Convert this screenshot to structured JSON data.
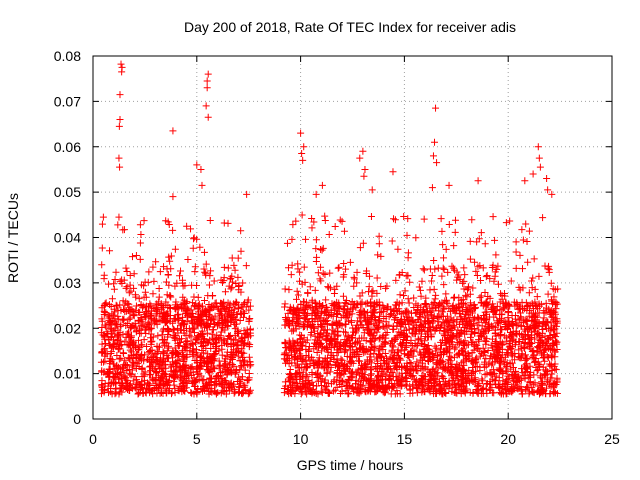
{
  "chart_data": {
    "type": "scatter",
    "title": "Day 200 of 2018, Rate Of TEC Index for receiver adis",
    "xlabel": "GPS time / hours",
    "ylabel": "ROTI / TECUs",
    "xlim": [
      0,
      25
    ],
    "ylim": [
      0,
      0.08
    ],
    "xticks": [
      0,
      5,
      10,
      15,
      20,
      25
    ],
    "yticks": [
      0,
      0.01,
      0.02,
      0.03,
      0.04,
      0.05,
      0.06,
      0.07,
      0.08
    ],
    "ytick_labels": [
      "0",
      "0.01",
      "0.02",
      "0.03",
      "0.04",
      "0.05",
      "0.06",
      "0.07",
      "0.08"
    ],
    "xtick_labels": [
      "0",
      "5",
      "10",
      "15",
      "20",
      "25"
    ],
    "grid": true,
    "marker": "+",
    "marker_color": "#ff0000",
    "series": [
      {
        "name": "ROTI",
        "segments": [
          {
            "x_start": 0.4,
            "x_end": 7.6
          },
          {
            "x_start": 9.2,
            "x_end": 22.4
          }
        ],
        "typical_range": [
          0.004,
          0.03
        ],
        "points": [
          {
            "x": 1.35,
            "y": 0.0782
          },
          {
            "x": 1.4,
            "y": 0.0775
          },
          {
            "x": 1.38,
            "y": 0.0765
          },
          {
            "x": 1.3,
            "y": 0.0715
          },
          {
            "x": 1.3,
            "y": 0.066
          },
          {
            "x": 1.27,
            "y": 0.0645
          },
          {
            "x": 1.25,
            "y": 0.0575
          },
          {
            "x": 1.28,
            "y": 0.0555
          },
          {
            "x": 3.85,
            "y": 0.0635
          },
          {
            "x": 5.55,
            "y": 0.076
          },
          {
            "x": 5.5,
            "y": 0.0745
          },
          {
            "x": 5.5,
            "y": 0.073
          },
          {
            "x": 5.45,
            "y": 0.069
          },
          {
            "x": 5.55,
            "y": 0.0665
          },
          {
            "x": 5.0,
            "y": 0.056
          },
          {
            "x": 5.2,
            "y": 0.055
          },
          {
            "x": 5.25,
            "y": 0.0515
          },
          {
            "x": 3.85,
            "y": 0.049
          },
          {
            "x": 7.4,
            "y": 0.0495
          },
          {
            "x": 0.5,
            "y": 0.0445
          },
          {
            "x": 1.25,
            "y": 0.0445
          },
          {
            "x": 10.0,
            "y": 0.063
          },
          {
            "x": 10.15,
            "y": 0.06
          },
          {
            "x": 10.05,
            "y": 0.0585
          },
          {
            "x": 10.1,
            "y": 0.057
          },
          {
            "x": 11.05,
            "y": 0.0515
          },
          {
            "x": 10.75,
            "y": 0.0495
          },
          {
            "x": 13.0,
            "y": 0.059
          },
          {
            "x": 12.85,
            "y": 0.0575
          },
          {
            "x": 13.1,
            "y": 0.055
          },
          {
            "x": 13.05,
            "y": 0.0535
          },
          {
            "x": 13.45,
            "y": 0.0505
          },
          {
            "x": 14.45,
            "y": 0.0545
          },
          {
            "x": 16.5,
            "y": 0.0685
          },
          {
            "x": 16.45,
            "y": 0.061
          },
          {
            "x": 16.4,
            "y": 0.058
          },
          {
            "x": 16.55,
            "y": 0.0565
          },
          {
            "x": 16.35,
            "y": 0.051
          },
          {
            "x": 17.15,
            "y": 0.0515
          },
          {
            "x": 18.55,
            "y": 0.0525
          },
          {
            "x": 21.45,
            "y": 0.06
          },
          {
            "x": 21.5,
            "y": 0.0575
          },
          {
            "x": 21.55,
            "y": 0.0555
          },
          {
            "x": 21.2,
            "y": 0.054
          },
          {
            "x": 21.85,
            "y": 0.053
          },
          {
            "x": 21.9,
            "y": 0.0505
          },
          {
            "x": 20.8,
            "y": 0.0525
          },
          {
            "x": 22.1,
            "y": 0.0495
          }
        ]
      }
    ]
  }
}
